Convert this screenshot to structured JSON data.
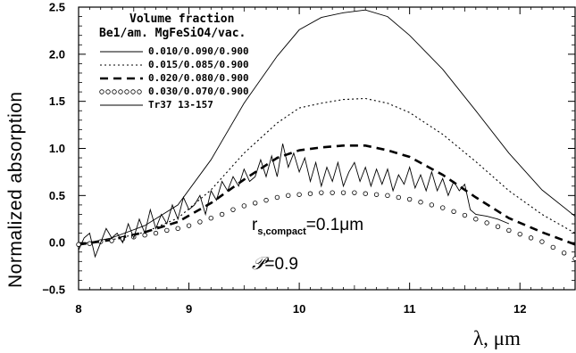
{
  "chart_data": {
    "type": "line",
    "xlabel": "λ,  μm",
    "ylabel": "Normalized absorption",
    "xlim": [
      8.0,
      12.5
    ],
    "ylim": [
      -0.5,
      2.5
    ],
    "xticks": [
      "8",
      "9",
      "10",
      "11",
      "12"
    ],
    "yticks": [
      "−0.5",
      "0.0",
      "0.5",
      "1.0",
      "1.5",
      "2.0",
      "2.5"
    ],
    "legend": {
      "title_line1": "Volume fraction",
      "title_line2": "Be1/am. MgFeSiO4/vac.",
      "placement": "top-left"
    },
    "annotations": {
      "rs_main": "r",
      "rs_sub": "s,compact",
      "rs_value": "=0.1μm",
      "p_symbol": "𝒫",
      "p_value": "=0.9"
    },
    "series": [
      {
        "name": "0.010/0.090/0.900",
        "style": "solid-thin",
        "x": [
          8.0,
          8.3,
          8.6,
          8.9,
          9.2,
          9.5,
          9.8,
          10.0,
          10.2,
          10.4,
          10.6,
          10.8,
          11.0,
          11.3,
          11.6,
          11.9,
          12.2,
          12.5
        ],
        "y": [
          -0.02,
          0.05,
          0.18,
          0.4,
          0.88,
          1.48,
          1.98,
          2.26,
          2.39,
          2.44,
          2.47,
          2.4,
          2.2,
          1.84,
          1.4,
          0.95,
          0.56,
          0.28
        ]
      },
      {
        "name": "0.015/0.085/0.900",
        "style": "dotted",
        "x": [
          8.0,
          8.3,
          8.6,
          8.9,
          9.2,
          9.5,
          9.8,
          10.0,
          10.2,
          10.4,
          10.6,
          10.8,
          11.0,
          11.3,
          11.6,
          11.9,
          12.2,
          12.5
        ],
        "y": [
          -0.02,
          0.03,
          0.11,
          0.26,
          0.56,
          0.95,
          1.27,
          1.43,
          1.48,
          1.52,
          1.53,
          1.48,
          1.38,
          1.15,
          0.86,
          0.55,
          0.3,
          0.1
        ]
      },
      {
        "name": "0.020/0.080/0.900",
        "style": "dashed-thick",
        "x": [
          8.0,
          8.3,
          8.6,
          8.9,
          9.2,
          9.5,
          9.8,
          10.0,
          10.2,
          10.4,
          10.6,
          10.8,
          11.0,
          11.3,
          11.6,
          11.9,
          12.2,
          12.5
        ],
        "y": [
          -0.02,
          0.03,
          0.11,
          0.22,
          0.42,
          0.67,
          0.9,
          0.98,
          1.01,
          1.03,
          1.03,
          0.98,
          0.91,
          0.72,
          0.48,
          0.26,
          0.11,
          -0.02
        ]
      },
      {
        "name": "0.030/0.070/0.900",
        "style": "circles",
        "x": [
          8.0,
          8.1,
          8.2,
          8.3,
          8.4,
          8.5,
          8.6,
          8.7,
          8.8,
          8.9,
          9.0,
          9.1,
          9.2,
          9.3,
          9.4,
          9.5,
          9.6,
          9.7,
          9.8,
          9.9,
          10.0,
          10.1,
          10.2,
          10.3,
          10.4,
          10.5,
          10.6,
          10.7,
          10.8,
          10.9,
          11.0,
          11.1,
          11.2,
          11.3,
          11.4,
          11.5,
          11.6,
          11.7,
          11.8,
          11.9,
          12.0,
          12.1,
          12.2,
          12.3,
          12.4,
          12.5
        ],
        "y": [
          -0.02,
          -0.01,
          0.01,
          0.02,
          0.04,
          0.06,
          0.08,
          0.1,
          0.13,
          0.15,
          0.18,
          0.22,
          0.26,
          0.3,
          0.35,
          0.39,
          0.42,
          0.45,
          0.48,
          0.5,
          0.51,
          0.52,
          0.53,
          0.53,
          0.53,
          0.53,
          0.52,
          0.51,
          0.5,
          0.48,
          0.46,
          0.43,
          0.4,
          0.37,
          0.33,
          0.29,
          0.25,
          0.21,
          0.17,
          0.13,
          0.09,
          0.05,
          0.01,
          -0.05,
          -0.11,
          -0.17
        ]
      },
      {
        "name": "Tr37 13-157",
        "style": "solid-jagged",
        "x": [
          8.0,
          8.05,
          8.1,
          8.15,
          8.2,
          8.25,
          8.3,
          8.35,
          8.4,
          8.45,
          8.5,
          8.55,
          8.6,
          8.65,
          8.7,
          8.75,
          8.8,
          8.85,
          8.9,
          8.95,
          9.0,
          9.05,
          9.1,
          9.15,
          9.2,
          9.25,
          9.3,
          9.35,
          9.4,
          9.45,
          9.5,
          9.55,
          9.6,
          9.65,
          9.7,
          9.75,
          9.8,
          9.85,
          9.9,
          9.95,
          10.0,
          10.05,
          10.1,
          10.15,
          10.2,
          10.25,
          10.3,
          10.35,
          10.4,
          10.45,
          10.5,
          10.55,
          10.6,
          10.65,
          10.7,
          10.75,
          10.8,
          10.85,
          10.9,
          10.95,
          11.0,
          11.05,
          11.1,
          11.15,
          11.2,
          11.25,
          11.3,
          11.35,
          11.4,
          11.45,
          11.5,
          11.55,
          11.6,
          11.7,
          11.8,
          11.9
        ],
        "y": [
          -0.08,
          0.05,
          0.1,
          -0.15,
          0.0,
          0.15,
          0.05,
          0.1,
          0.0,
          0.2,
          0.05,
          0.25,
          0.1,
          0.35,
          0.15,
          0.3,
          0.2,
          0.4,
          0.25,
          0.48,
          0.35,
          0.4,
          0.5,
          0.3,
          0.55,
          0.45,
          0.65,
          0.55,
          0.7,
          0.6,
          0.78,
          0.65,
          0.7,
          0.88,
          0.7,
          0.92,
          0.7,
          1.05,
          0.8,
          0.95,
          0.75,
          0.9,
          0.65,
          0.85,
          0.6,
          0.8,
          0.65,
          0.85,
          0.6,
          0.75,
          0.85,
          0.65,
          0.8,
          0.6,
          0.78,
          0.62,
          0.78,
          0.55,
          0.72,
          0.62,
          0.8,
          0.58,
          0.72,
          0.55,
          0.75,
          0.55,
          0.68,
          0.5,
          0.65,
          0.55,
          0.62,
          0.35,
          0.3,
          0.28,
          0.25,
          0.2
        ]
      }
    ]
  }
}
